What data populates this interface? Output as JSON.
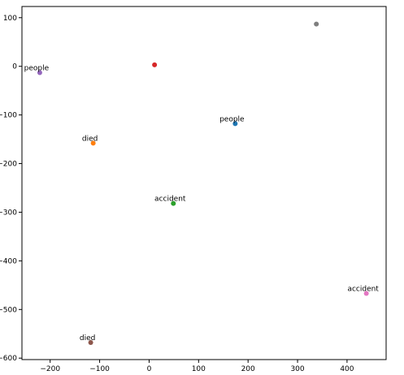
{
  "chart_data": {
    "type": "scatter",
    "x": [
      174,
      -113,
      49,
      11,
      -221,
      -118,
      439,
      338
    ],
    "y": [
      -118,
      -158,
      -282,
      3,
      -13,
      -568,
      -467,
      87
    ],
    "labels": [
      "people",
      "died",
      "accident",
      null,
      "people",
      "died",
      "accident",
      null
    ],
    "colors": [
      "#1f77b4",
      "#ff7f0e",
      "#2ca02c",
      "#d62728",
      "#9467bd",
      "#8c564b",
      "#e377c2",
      "#7f7f7f"
    ],
    "xlim": [
      -257,
      479
    ],
    "ylim": [
      -603,
      123
    ],
    "xticks": [
      {
        "value": -200,
        "label": "−200"
      },
      {
        "value": -100,
        "label": "−100"
      },
      0,
      100,
      200,
      300,
      400
    ],
    "yticks": [
      100,
      0,
      {
        "value": -100,
        "label": "−100"
      },
      {
        "value": -200,
        "label": "−200"
      },
      {
        "value": -300,
        "label": "−300"
      },
      {
        "value": -400,
        "label": "−400"
      },
      {
        "value": -500,
        "label": "−500"
      },
      {
        "value": -600,
        "label": "−600"
      }
    ]
  }
}
